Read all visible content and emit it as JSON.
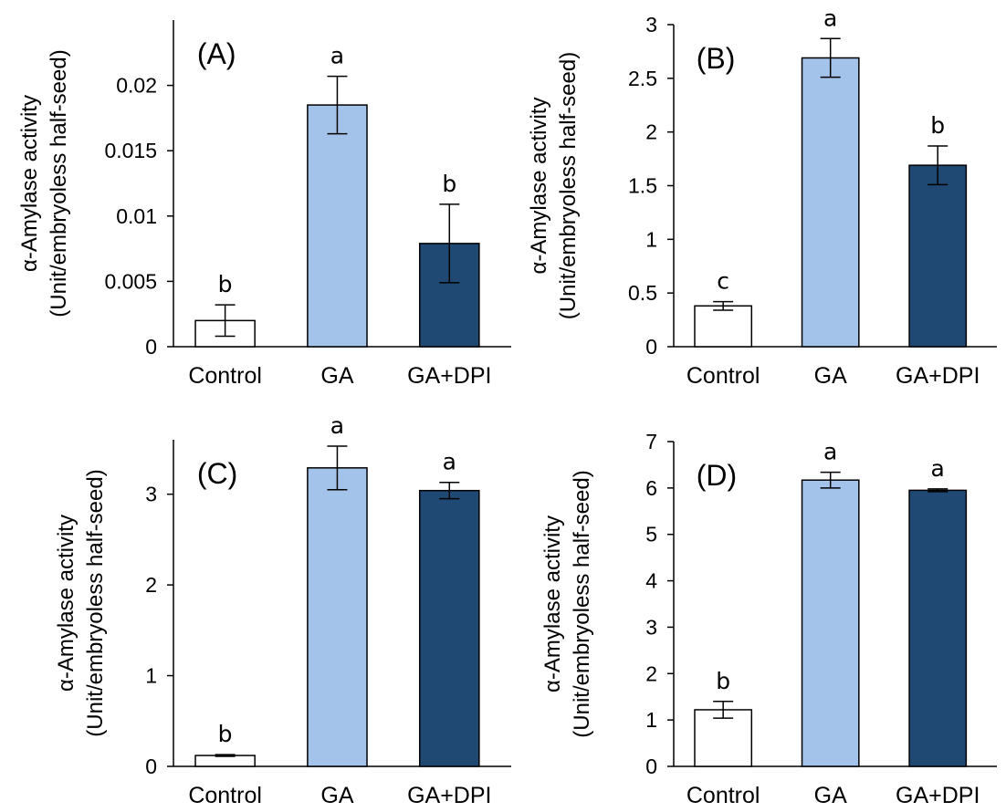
{
  "figure_panels": [
    "A",
    "B",
    "C",
    "D"
  ],
  "chart_data": [
    {
      "type": "bar",
      "panel_label": "(A)",
      "categories": [
        "Control",
        "GA",
        "GA+DPI"
      ],
      "values": [
        0.002,
        0.0185,
        0.0079
      ],
      "error": [
        0.0012,
        0.0022,
        0.003
      ],
      "significance": [
        "b",
        "a",
        "b"
      ],
      "colors": [
        "#ffffff",
        "#a3c3ea",
        "#1f4873"
      ],
      "ylabel_line1": "α-Amylase activity",
      "ylabel_line2": "(Unit/embryoless half-seed)",
      "ylim": [
        0,
        0.025
      ],
      "yticks": [
        0,
        0.005,
        0.01,
        0.015,
        0.02
      ],
      "ytick_labels": [
        "0",
        "0.005",
        "0.01",
        "0.015",
        "0.02"
      ]
    },
    {
      "type": "bar",
      "panel_label": "(B)",
      "categories": [
        "Control",
        "GA",
        "GA+DPI"
      ],
      "values": [
        0.38,
        2.69,
        1.69
      ],
      "error": [
        0.04,
        0.18,
        0.18
      ],
      "significance": [
        "c",
        "a",
        "b"
      ],
      "colors": [
        "#ffffff",
        "#a3c3ea",
        "#1f4873"
      ],
      "ylabel_line1": "α-Amylase activity",
      "ylabel_line2": "(Unit/embryoless half-seed)",
      "ylim": [
        0,
        3
      ],
      "yticks": [
        0,
        0.5,
        1,
        1.5,
        2,
        2.5,
        3
      ],
      "ytick_labels": [
        "0",
        "0.5",
        "1",
        "1.5",
        "2",
        "2.5",
        "3"
      ]
    },
    {
      "type": "bar",
      "panel_label": "(C)",
      "categories": [
        "Control",
        "GA",
        "GA+DPI"
      ],
      "values": [
        0.12,
        3.29,
        3.04
      ],
      "error": [
        0.01,
        0.24,
        0.09
      ],
      "significance": [
        "b",
        "a",
        "a"
      ],
      "colors": [
        "#ffffff",
        "#a3c3ea",
        "#1f4873"
      ],
      "ylabel_line1": "α-Amylase activity",
      "ylabel_line2": "(Unit/embryoless half-seed)",
      "ylim": [
        0,
        3.6
      ],
      "yticks": [
        0,
        1,
        2,
        3
      ],
      "ytick_labels": [
        "0",
        "1",
        "2",
        "3"
      ]
    },
    {
      "type": "bar",
      "panel_label": "(D)",
      "categories": [
        "Control",
        "GA",
        "GA+DPI"
      ],
      "values": [
        1.22,
        6.17,
        5.95
      ],
      "error": [
        0.18,
        0.17,
        0.03
      ],
      "significance": [
        "b",
        "a",
        "a"
      ],
      "colors": [
        "#ffffff",
        "#a3c3ea",
        "#1f4873"
      ],
      "ylabel_line1": "α-Amylase activity",
      "ylabel_line2": "(Unit/embryoless half-seed)",
      "ylim": [
        0,
        7
      ],
      "yticks": [
        0,
        1,
        2,
        3,
        4,
        5,
        6,
        7
      ],
      "ytick_labels": [
        "0",
        "1",
        "2",
        "3",
        "4",
        "5",
        "6",
        "7"
      ]
    }
  ]
}
